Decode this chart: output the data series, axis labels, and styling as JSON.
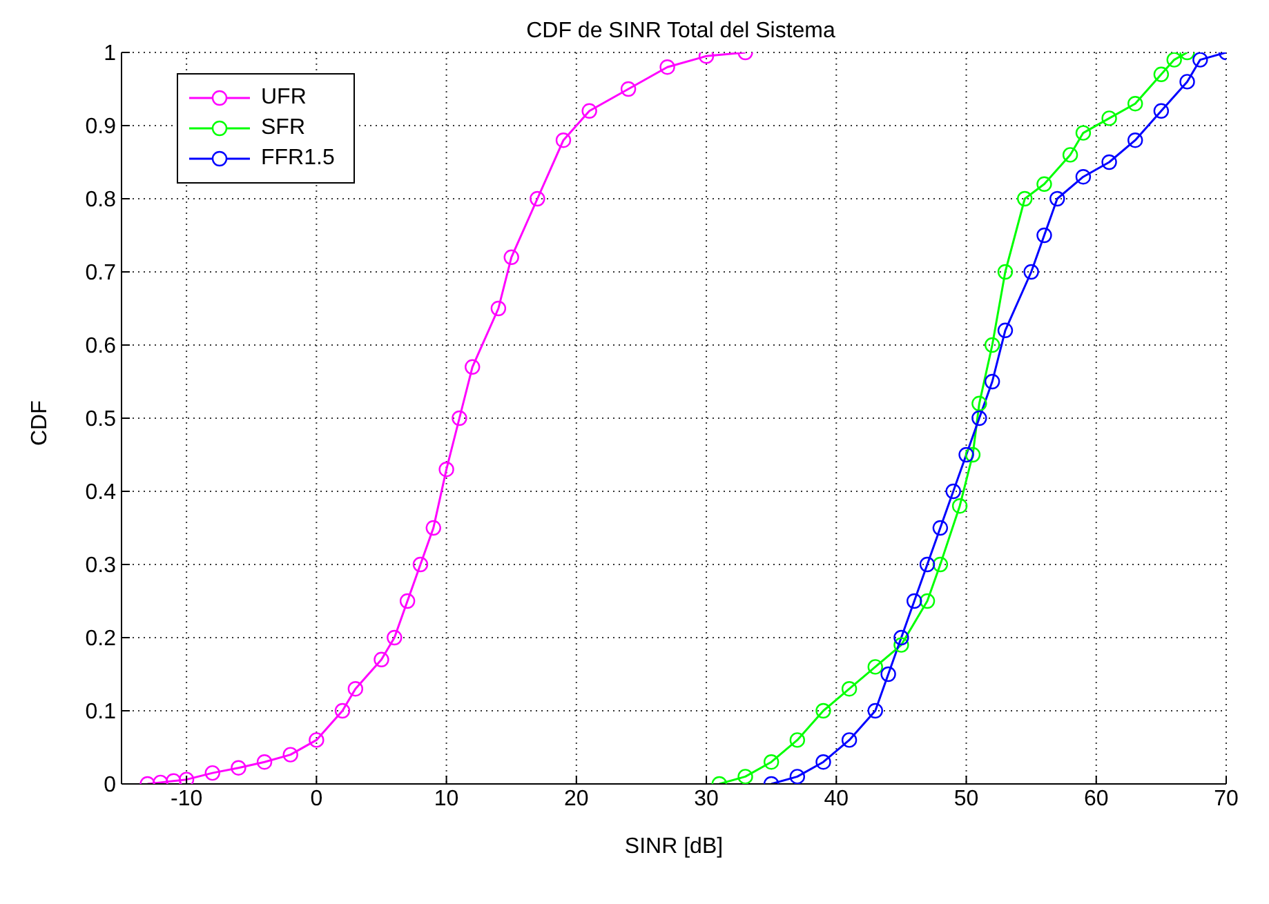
{
  "chart_data": {
    "type": "line",
    "title": "CDF de SINR Total del Sistema",
    "xlabel": "SINR [dB]",
    "ylabel": "CDF",
    "xlim": [
      -15,
      70
    ],
    "xticks": [
      -10,
      0,
      10,
      20,
      30,
      40,
      50,
      60,
      70
    ],
    "ylim": [
      0,
      1
    ],
    "yticks": [
      0,
      0.1,
      0.2,
      0.3,
      0.4,
      0.5,
      0.6,
      0.7,
      0.8,
      0.9,
      1
    ],
    "grid": true,
    "legend": "top left",
    "marker": "circle",
    "line_style": "solid",
    "series": [
      {
        "name": "UFR",
        "color": "#ff00ff",
        "x": [
          -13,
          -12,
          -11,
          -10,
          -8,
          -6,
          -4,
          -2,
          0,
          2,
          3,
          5,
          6,
          7,
          8,
          9,
          10,
          11,
          12,
          14,
          15,
          17,
          19,
          21,
          24,
          27,
          30,
          33
        ],
        "values": [
          0,
          0.002,
          0.004,
          0.006,
          0.015,
          0.022,
          0.03,
          0.04,
          0.06,
          0.1,
          0.13,
          0.17,
          0.2,
          0.25,
          0.3,
          0.35,
          0.43,
          0.5,
          0.57,
          0.65,
          0.72,
          0.8,
          0.88,
          0.92,
          0.95,
          0.98,
          0.995,
          1
        ]
      },
      {
        "name": "SFR",
        "color": "#00ff00",
        "x": [
          31,
          33,
          35,
          37,
          39,
          41,
          43,
          45,
          47,
          48,
          49.5,
          50.5,
          51,
          52,
          53,
          54.5,
          56,
          58,
          59,
          61,
          63,
          65,
          66,
          67
        ],
        "values": [
          0,
          0.01,
          0.03,
          0.06,
          0.1,
          0.13,
          0.16,
          0.19,
          0.25,
          0.3,
          0.38,
          0.45,
          0.52,
          0.6,
          0.7,
          0.8,
          0.82,
          0.86,
          0.89,
          0.91,
          0.93,
          0.97,
          0.99,
          1
        ]
      },
      {
        "name": "FFR1.5",
        "color": "#0000ff",
        "x": [
          35,
          37,
          39,
          41,
          43,
          44,
          45,
          46,
          47,
          48,
          49,
          50,
          51,
          52,
          53,
          55,
          56,
          57,
          59,
          61,
          63,
          65,
          67,
          68,
          70
        ],
        "values": [
          0,
          0.01,
          0.03,
          0.06,
          0.1,
          0.15,
          0.2,
          0.25,
          0.3,
          0.35,
          0.4,
          0.45,
          0.5,
          0.55,
          0.62,
          0.7,
          0.75,
          0.8,
          0.83,
          0.85,
          0.88,
          0.92,
          0.96,
          0.99,
          1
        ]
      }
    ]
  }
}
